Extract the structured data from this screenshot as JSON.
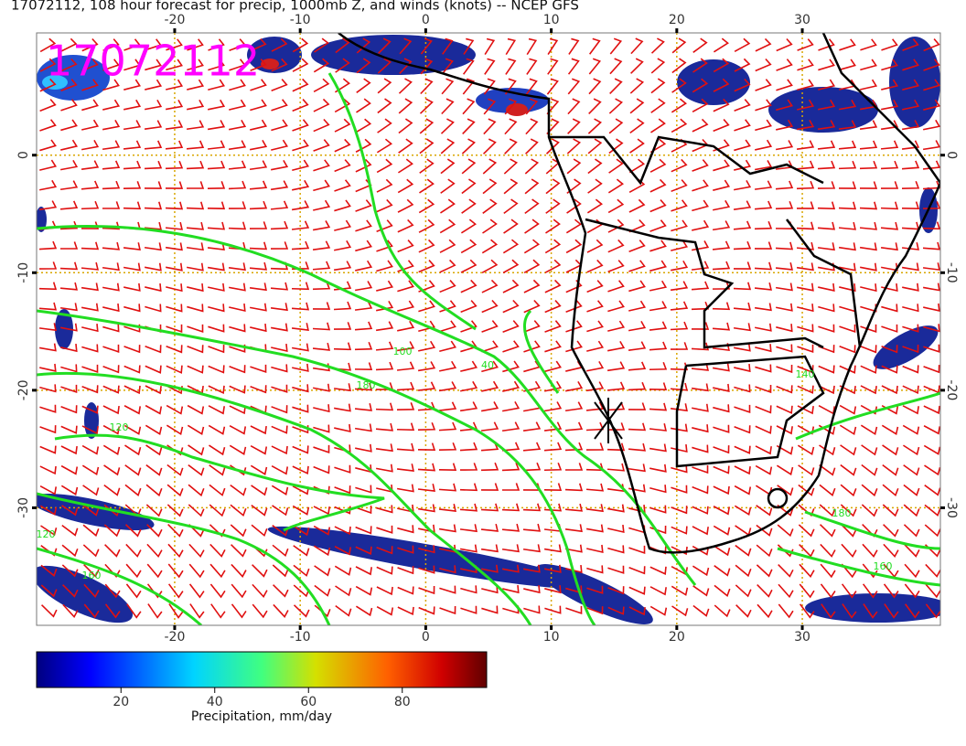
{
  "title": "17072112, 108 hour forecast for precip, 1000mb Z, and winds (knots) -- NCEP GFS",
  "stamp": "17072112",
  "map": {
    "xlim": [
      -31,
      41
    ],
    "ylim": [
      -40,
      10.4
    ],
    "xticks": [
      -20,
      -10,
      0,
      10,
      20,
      30
    ],
    "yticks": [
      -30,
      -20,
      -10,
      0
    ],
    "grid": true,
    "grid_color": "#d9a600",
    "wind_color": "#e01010",
    "contour_color": "#22dd22"
  },
  "contour_labels": [
    "100",
    "40",
    "180",
    "120",
    "140",
    "160",
    "180",
    "120",
    "160"
  ],
  "colorbar": {
    "label": "Precipitation, mm/day",
    "lim": [
      2,
      98
    ],
    "ticks": [
      20,
      40,
      60,
      80
    ]
  }
}
